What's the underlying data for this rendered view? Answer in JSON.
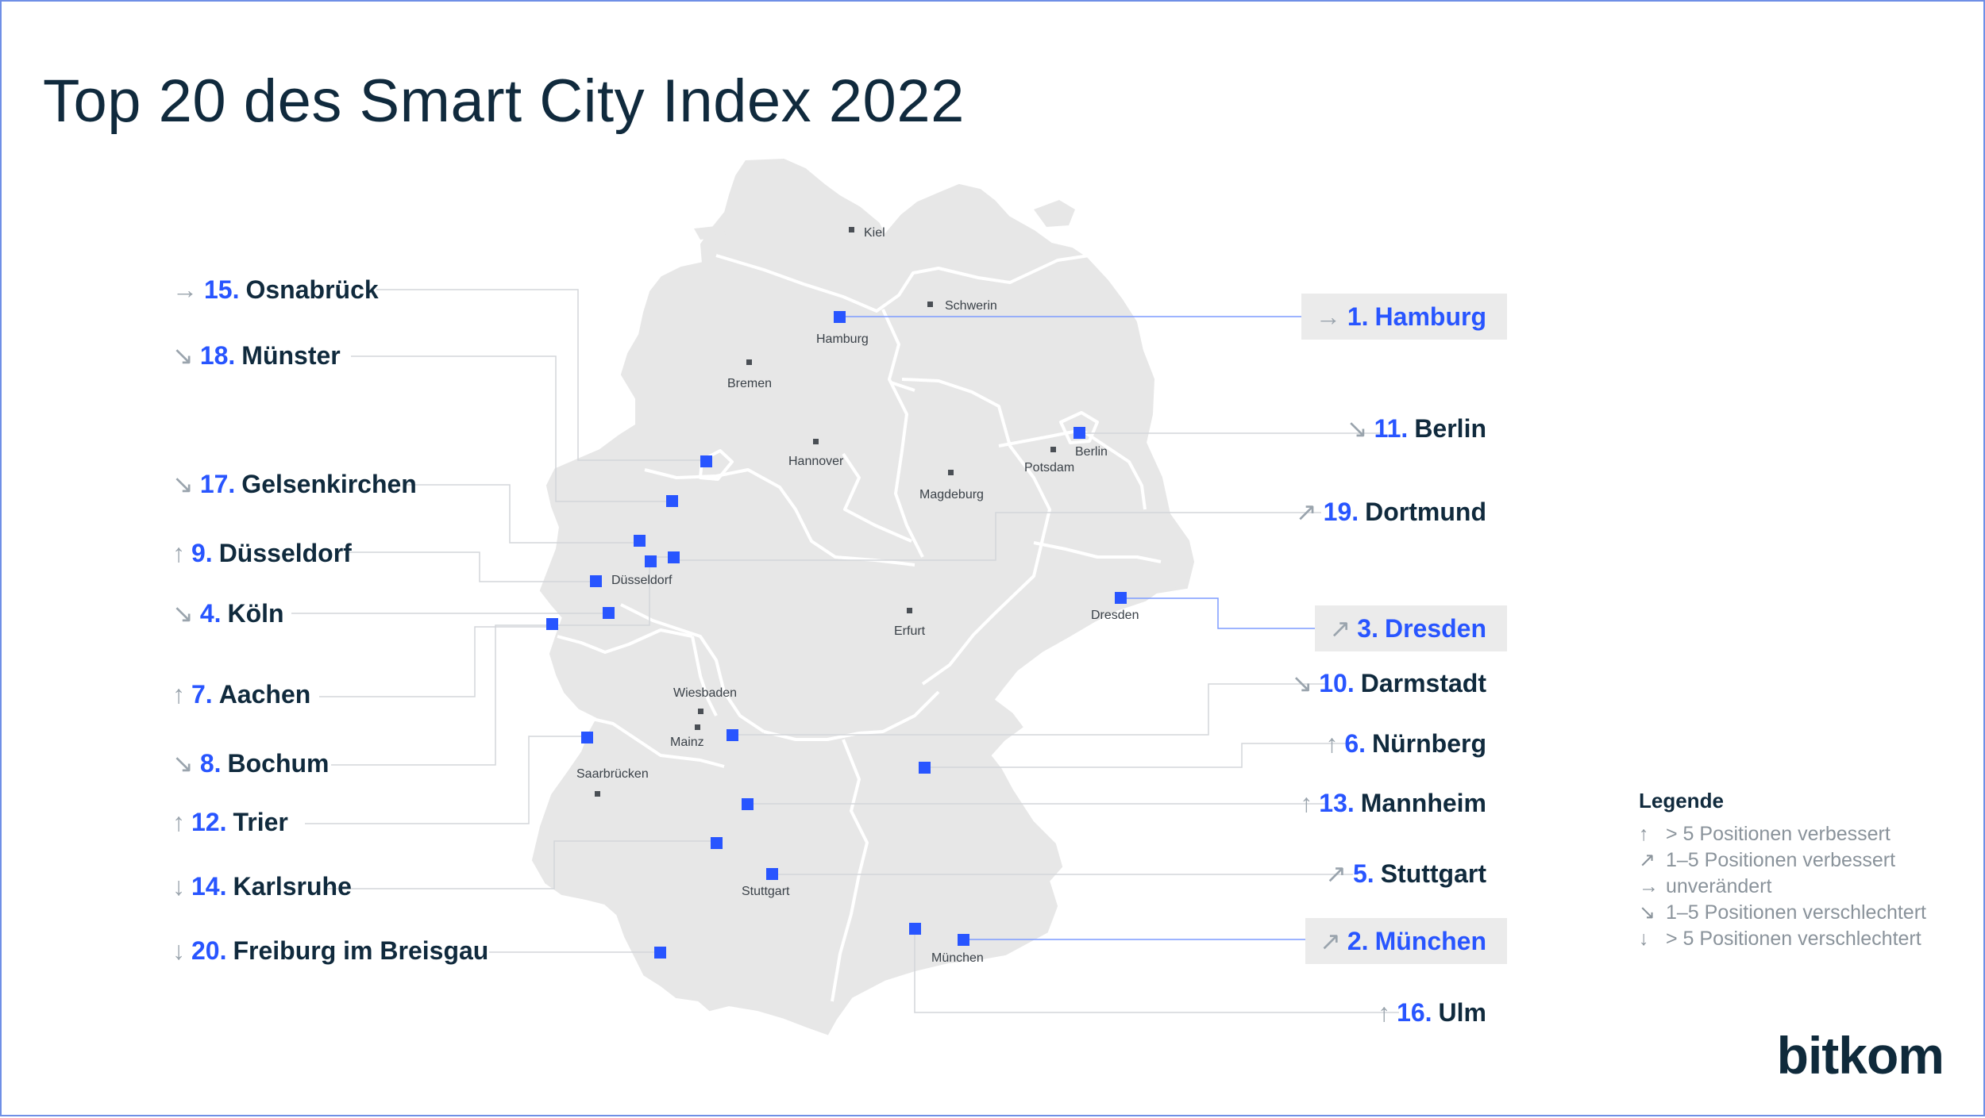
{
  "title": "Top 20 des Smart City Index 2022",
  "brand": "bitkom",
  "colors": {
    "accent": "#2855ff",
    "map_fill": "#e7e7e7",
    "text": "#102a3d",
    "muted": "#9aa4ad"
  },
  "map_labels": [
    "Kiel",
    "Schwerin",
    "Hamburg",
    "Bremen",
    "Hannover",
    "Berlin",
    "Potsdam",
    "Magdeburg",
    "Düsseldorf",
    "Erfurt",
    "Dresden",
    "Wiesbaden",
    "Mainz",
    "Saarbrücken",
    "Stuttgart",
    "München"
  ],
  "ranking": [
    {
      "rank": "1.",
      "name": "Hamburg",
      "trend": "unverändert",
      "arrow": "→",
      "highlight": true
    },
    {
      "rank": "2.",
      "name": "München",
      "trend": "1–5 Positionen verbessert",
      "arrow": "↗",
      "highlight": true
    },
    {
      "rank": "3.",
      "name": "Dresden",
      "trend": "1–5 Positionen verbessert",
      "arrow": "↗",
      "highlight": true
    },
    {
      "rank": "4.",
      "name": "Köln",
      "trend": "1–5 Positionen verschlechtert",
      "arrow": "↘",
      "highlight": false
    },
    {
      "rank": "5.",
      "name": "Stuttgart",
      "trend": "1–5 Positionen verbessert",
      "arrow": "↗",
      "highlight": false
    },
    {
      "rank": "6.",
      "name": "Nürnberg",
      "trend": "> 5 Positionen verbessert",
      "arrow": "↑",
      "highlight": false
    },
    {
      "rank": "7.",
      "name": "Aachen",
      "trend": "> 5 Positionen verbessert",
      "arrow": "↑",
      "highlight": false
    },
    {
      "rank": "8.",
      "name": "Bochum",
      "trend": "1–5 Positionen verschlechtert",
      "arrow": "↘",
      "highlight": false
    },
    {
      "rank": "9.",
      "name": "Düsseldorf",
      "trend": "> 5 Positionen verbessert",
      "arrow": "↑",
      "highlight": false
    },
    {
      "rank": "10.",
      "name": "Darmstadt",
      "trend": "1–5 Positionen verschlechtert",
      "arrow": "↘",
      "highlight": false
    },
    {
      "rank": "11.",
      "name": "Berlin",
      "trend": "1–5 Positionen verschlechtert",
      "arrow": "↘",
      "highlight": false
    },
    {
      "rank": "12.",
      "name": "Trier",
      "trend": "> 5 Positionen verbessert",
      "arrow": "↑",
      "highlight": false
    },
    {
      "rank": "13.",
      "name": "Mannheim",
      "trend": "> 5 Positionen verbessert",
      "arrow": "↑",
      "highlight": false
    },
    {
      "rank": "14.",
      "name": "Karlsruhe",
      "trend": "> 5 Positionen verschlechtert",
      "arrow": "↓",
      "highlight": false
    },
    {
      "rank": "15.",
      "name": "Osnabrück",
      "trend": "unverändert",
      "arrow": "→",
      "highlight": false
    },
    {
      "rank": "16.",
      "name": "Ulm",
      "trend": "> 5 Positionen verbessert",
      "arrow": "↑",
      "highlight": false
    },
    {
      "rank": "17.",
      "name": "Gelsenkirchen",
      "trend": "1–5 Positionen verschlechtert",
      "arrow": "↘",
      "highlight": false
    },
    {
      "rank": "18.",
      "name": "Münster",
      "trend": "1–5 Positionen verschlechtert",
      "arrow": "↘",
      "highlight": false
    },
    {
      "rank": "19.",
      "name": "Dortmund",
      "trend": "1–5 Positionen verbessert",
      "arrow": "↗",
      "highlight": false
    },
    {
      "rank": "20.",
      "name": "Freiburg im Breisgau",
      "trend": "> 5 Positionen verschlechtert",
      "arrow": "↓",
      "highlight": false
    }
  ],
  "legend": {
    "title": "Legende",
    "items": [
      {
        "arrow": "↑",
        "text": "> 5 Positionen verbessert"
      },
      {
        "arrow": "↗",
        "text": "1–5 Positionen verbessert"
      },
      {
        "arrow": "→",
        "text": "unverändert"
      },
      {
        "arrow": "↘",
        "text": "1–5 Positionen verschlechtert"
      },
      {
        "arrow": "↓",
        "text": "> 5 Positionen verschlechtert"
      }
    ]
  }
}
